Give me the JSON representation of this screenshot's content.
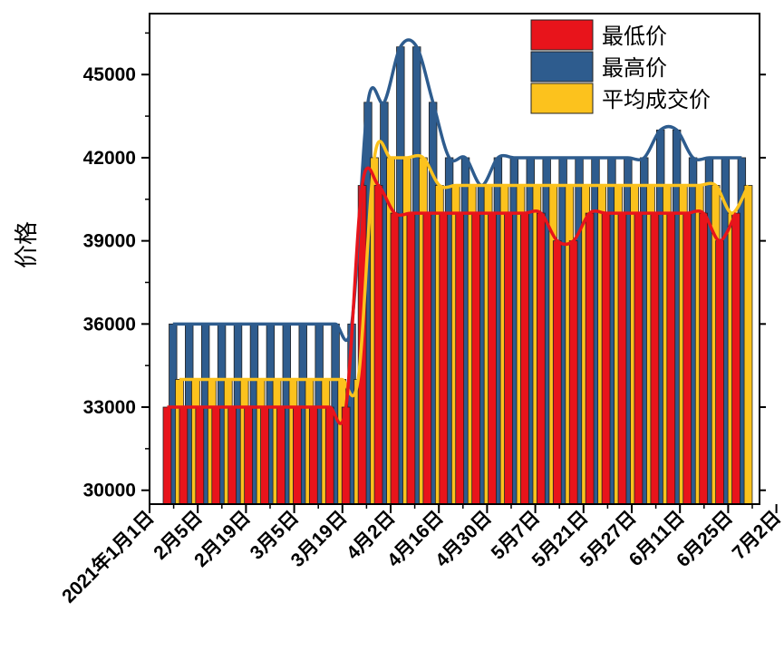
{
  "chart_data": {
    "type": "bar",
    "title": "",
    "xlabel": "",
    "ylabel": "价格",
    "ylim": [
      29500,
      47200
    ],
    "yticks": [
      30000,
      33000,
      36000,
      39000,
      42000,
      45000
    ],
    "ytick_labels": [
      "30000",
      "33000",
      "36000",
      "39000",
      "42000",
      "45000"
    ],
    "x_tick_labels": [
      "2021年1月1日",
      "2月5日",
      "2月19日",
      "3月5日",
      "3月19日",
      "4月2日",
      "4月16日",
      "4月30日",
      "5月7日",
      "5月21日",
      "5月27日",
      "6月11日",
      "6月25日",
      "7月2日"
    ],
    "grid": false,
    "legend_position": "top-right",
    "smooth_lines": true,
    "series": [
      {
        "name": "最低价",
        "color": "#e8141b",
        "values": [
          33000,
          33000,
          33000,
          33000,
          33000,
          33000,
          33000,
          33000,
          33000,
          33000,
          33000,
          33000,
          41000,
          41000,
          40000,
          40000,
          40000,
          40000,
          40000,
          40000,
          40000,
          40000,
          40000,
          40000,
          39000,
          39000,
          40000,
          40000,
          40000,
          40000,
          40000,
          40000,
          40000,
          40000,
          39000,
          40000
        ]
      },
      {
        "name": "最高价",
        "color": "#2e5c8e",
        "values": [
          36000,
          36000,
          36000,
          36000,
          36000,
          36000,
          36000,
          36000,
          36000,
          36000,
          36000,
          36000,
          44000,
          44000,
          46000,
          46000,
          44000,
          42000,
          42000,
          41000,
          42000,
          42000,
          42000,
          42000,
          42000,
          42000,
          42000,
          42000,
          42000,
          42000,
          43000,
          43000,
          42000,
          42000,
          42000,
          42000
        ]
      },
      {
        "name": "平均成交价",
        "color": "#fcc21d",
        "values": [
          34000,
          34000,
          34000,
          34000,
          34000,
          34000,
          34000,
          34000,
          34000,
          34000,
          34000,
          34000,
          42000,
          42000,
          42000,
          42000,
          41000,
          41000,
          41000,
          41000,
          41000,
          41000,
          41000,
          41000,
          41000,
          41000,
          41000,
          41000,
          41000,
          41000,
          41000,
          41000,
          41000,
          41000,
          40000,
          41000
        ]
      }
    ]
  }
}
